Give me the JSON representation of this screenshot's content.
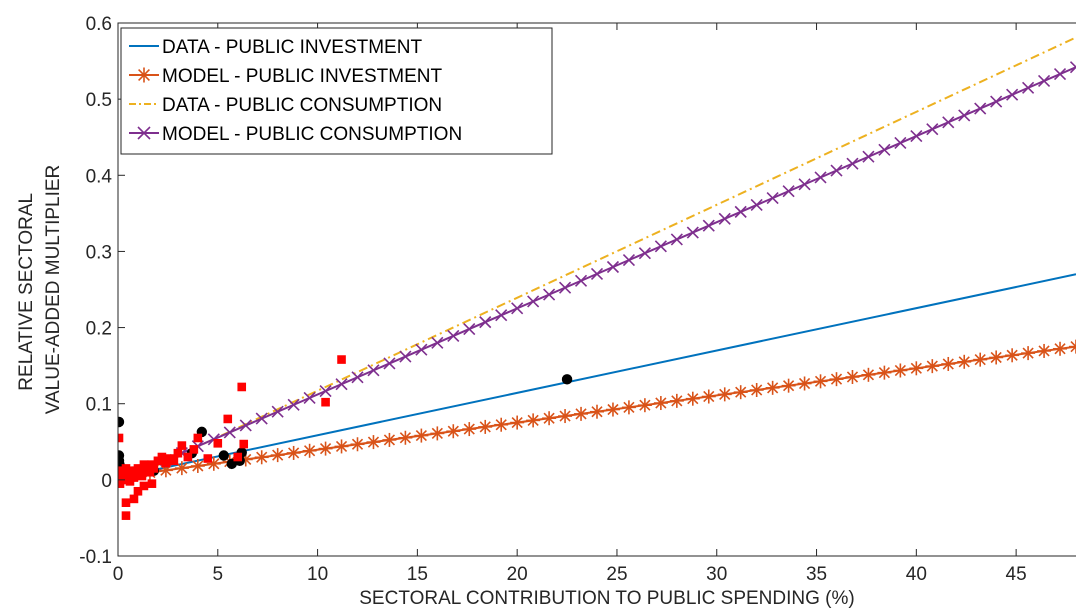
{
  "chart_data": {
    "type": "scatter",
    "xlabel": "SECTORAL CONTRIBUTION TO PUBLIC SPENDING (%)",
    "ylabel": [
      "RELATIVE SECTORAL",
      "VALUE-ADDED MULTIPLIER"
    ],
    "xlim": [
      0,
      48
    ],
    "ylim": [
      -0.1,
      0.6
    ],
    "xticks": [
      0,
      5,
      10,
      15,
      20,
      25,
      30,
      35,
      40,
      45
    ],
    "yticks": [
      -0.1,
      0,
      0.1,
      0.2,
      0.3,
      0.4,
      0.5,
      0.6
    ],
    "xtick_labels": [
      "0",
      "5",
      "10",
      "15",
      "20",
      "25",
      "30",
      "35",
      "40",
      "45"
    ],
    "ytick_labels": [
      "-0.1",
      "0",
      "0.1",
      "0.2",
      "0.3",
      "0.4",
      "0.5",
      "0.6"
    ],
    "grid": false,
    "legend_position": "top-left",
    "series": [
      {
        "name": "DATA - PUBLIC INVESTMENT",
        "kind": "line",
        "style": "solid",
        "color": "#0072BD",
        "marker": "none",
        "x": [
          0,
          48
        ],
        "y": [
          0.003,
          0.27
        ]
      },
      {
        "name": "MODEL - PUBLIC INVESTMENT",
        "kind": "line",
        "style": "solid",
        "color": "#D95319",
        "marker": "asterisk",
        "x": [
          0,
          48
        ],
        "y": [
          0.004,
          0.175
        ]
      },
      {
        "name": "DATA - PUBLIC CONSUMPTION",
        "kind": "line",
        "style": "dashdot",
        "color": "#EDB120",
        "marker": "none",
        "x": [
          0,
          48
        ],
        "y": [
          -0.005,
          0.581
        ]
      },
      {
        "name": "MODEL - PUBLIC CONSUMPTION",
        "kind": "line",
        "style": "solid",
        "color": "#7E2F8E",
        "marker": "x",
        "x": [
          0,
          48
        ],
        "y": [
          -0.001,
          0.542
        ]
      },
      {
        "name": "",
        "kind": "scatter",
        "marker": "circle",
        "color": "#000000",
        "x": [
          0.05,
          0.05,
          0.05,
          0.08,
          0.1,
          0.12,
          0.15,
          0.1,
          0.08,
          0.2,
          0.3,
          1.8,
          3.7,
          4.2,
          5.3,
          5.7,
          6.1,
          6.2,
          22.5
        ],
        "y": [
          0.076,
          0.032,
          0.025,
          0.02,
          0.015,
          0.01,
          0.006,
          0.003,
          0.0,
          0.005,
          0.002,
          0.012,
          0.035,
          0.063,
          0.032,
          0.021,
          0.025,
          0.036,
          0.132
        ]
      },
      {
        "name": "",
        "kind": "scatter",
        "marker": "square",
        "color": "#FF0000",
        "x": [
          0.0,
          0.05,
          0.1,
          0.1,
          0.15,
          0.2,
          0.25,
          0.3,
          0.35,
          0.4,
          0.4,
          0.45,
          0.5,
          0.55,
          0.6,
          0.7,
          0.8,
          0.9,
          1.0,
          1.1,
          1.2,
          1.3,
          1.4,
          1.5,
          1.6,
          1.7,
          1.8,
          2.0,
          2.2,
          2.4,
          2.6,
          2.8,
          3.0,
          3.2,
          3.5,
          3.8,
          4.0,
          4.5,
          5.0,
          5.5,
          6.0,
          6.2,
          6.3,
          10.4,
          11.2,
          0.1,
          0.3,
          0.6,
          1.0,
          1.3,
          1.7,
          0.2,
          0.4,
          0.8,
          0.05,
          0.15
        ],
        "y": [
          0.005,
          0.055,
          0.01,
          -0.005,
          0.0,
          0.005,
          0.002,
          0.008,
          0.003,
          -0.047,
          -0.03,
          0.0,
          0.01,
          0.006,
          0.012,
          0.008,
          -0.025,
          0.012,
          0.015,
          0.01,
          0.005,
          0.02,
          0.018,
          0.015,
          0.01,
          0.02,
          0.015,
          0.025,
          0.03,
          0.022,
          0.028,
          0.025,
          0.035,
          0.045,
          0.03,
          0.04,
          0.055,
          0.028,
          0.048,
          0.08,
          0.03,
          0.122,
          0.047,
          0.102,
          0.158,
          0.012,
          0.005,
          -0.002,
          -0.015,
          -0.008,
          -0.005,
          0.0,
          0.015,
          0.003,
          -0.003,
          0.006
        ]
      }
    ]
  }
}
